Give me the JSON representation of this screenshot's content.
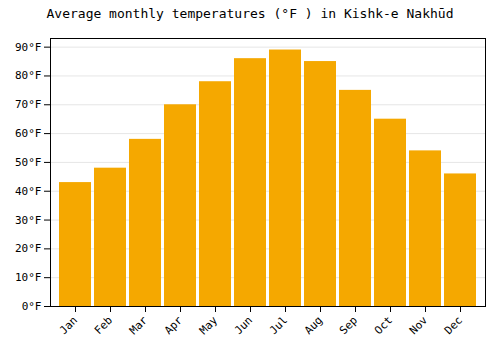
{
  "chart_data": {
    "type": "bar",
    "title": "Average monthly temperatures (°F ) in Kishk-e Nakhūd",
    "categories": [
      "Jan",
      "Feb",
      "Mar",
      "Apr",
      "May",
      "Jun",
      "Jul",
      "Aug",
      "Sep",
      "Oct",
      "Nov",
      "Dec"
    ],
    "values": [
      43,
      48,
      58,
      70,
      78,
      86,
      89,
      85,
      75,
      65,
      54,
      46
    ],
    "color": "#F5A800",
    "ylim": [
      0,
      93
    ],
    "yticks": [
      {
        "value": 0,
        "label": "0°F"
      },
      {
        "value": 10,
        "label": "10°F"
      },
      {
        "value": 20,
        "label": "20°F"
      },
      {
        "value": 30,
        "label": "30°F"
      },
      {
        "value": 40,
        "label": "40°F"
      },
      {
        "value": 50,
        "label": "50°F"
      },
      {
        "value": 60,
        "label": "60°F"
      },
      {
        "value": 70,
        "label": "70°F"
      },
      {
        "value": 80,
        "label": "80°F"
      },
      {
        "value": 90,
        "label": "90°F"
      }
    ],
    "grid": true
  }
}
